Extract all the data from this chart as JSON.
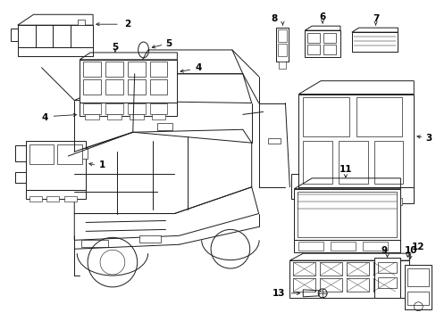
{
  "bg_color": "#ffffff",
  "line_color": "#1a1a1a",
  "fig_width": 4.89,
  "fig_height": 3.6,
  "dpi": 100,
  "components": {
    "label_font": 7.5,
    "arrow_lw": 0.6
  }
}
